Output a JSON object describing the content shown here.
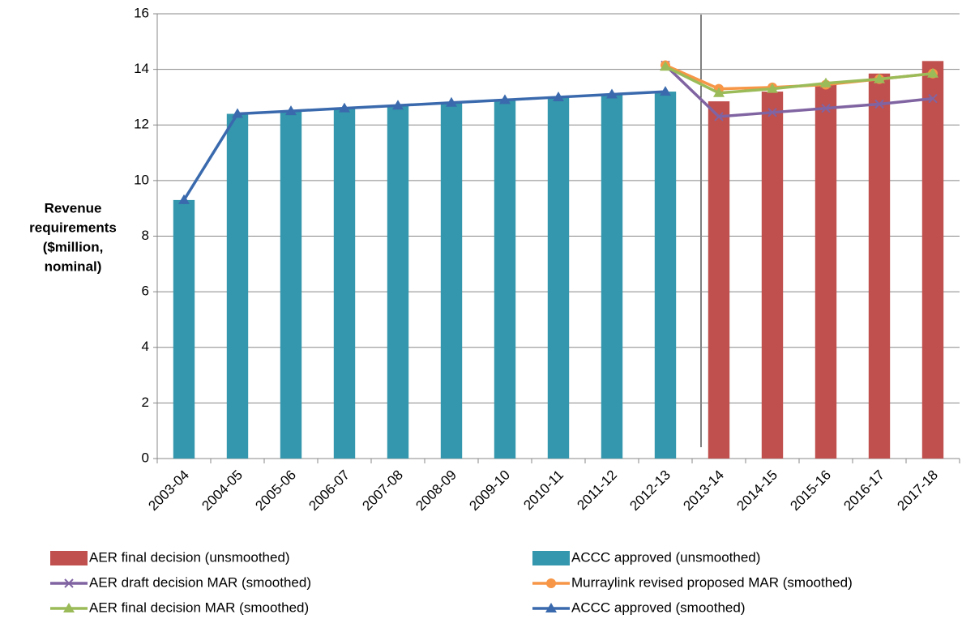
{
  "chart_data": {
    "type": "bar-line",
    "y_label": [
      "Revenue",
      "requirements",
      "($million,",
      "nominal)"
    ],
    "categories": [
      "2003-04",
      "2004-05",
      "2005-06",
      "2006-07",
      "2007-08",
      "2008-09",
      "2009-10",
      "2010-11",
      "2011-12",
      "2012-13",
      "2013-14",
      "2014-15",
      "2015-16",
      "2016-17",
      "2017-18"
    ],
    "series": [
      {
        "name": "AER final decision (unsmoothed)",
        "kind": "bar",
        "color": "#c0504d",
        "values": [
          null,
          null,
          null,
          null,
          null,
          null,
          null,
          null,
          null,
          null,
          12.85,
          13.2,
          13.5,
          13.85,
          14.3
        ]
      },
      {
        "name": "ACCC approved (unsmoothed)",
        "kind": "bar",
        "color": "#3497ad",
        "values": [
          9.3,
          12.4,
          12.5,
          12.6,
          12.7,
          12.8,
          12.9,
          13.0,
          13.1,
          13.2,
          null,
          null,
          null,
          null,
          null
        ]
      },
      {
        "name": "AER draft decision MAR (smoothed)",
        "kind": "line",
        "marker": "x",
        "color": "#8064a2",
        "values": [
          null,
          null,
          null,
          null,
          null,
          null,
          null,
          null,
          null,
          14.15,
          12.3,
          12.45,
          12.6,
          12.75,
          12.95
        ]
      },
      {
        "name": "Murraylink revised proposed MAR (smoothed)",
        "kind": "line",
        "marker": "circle",
        "color": "#f79646",
        "values": [
          null,
          null,
          null,
          null,
          null,
          null,
          null,
          null,
          null,
          14.15,
          13.3,
          13.35,
          13.45,
          13.65,
          13.85
        ]
      },
      {
        "name": "AER final decision MAR (smoothed)",
        "kind": "line",
        "marker": "triangle",
        "color": "#9bbb59",
        "values": [
          null,
          null,
          null,
          null,
          null,
          null,
          null,
          null,
          null,
          14.1,
          13.15,
          13.3,
          13.5,
          13.65,
          13.85
        ]
      },
      {
        "name": "ACCC approved (smoothed)",
        "kind": "line",
        "marker": "triangle",
        "color": "#3a6aad",
        "values": [
          9.3,
          12.4,
          12.5,
          12.6,
          12.7,
          12.8,
          12.9,
          13.0,
          13.1,
          13.2,
          null,
          null,
          null,
          null,
          null
        ]
      }
    ],
    "ylim": [
      0,
      16
    ],
    "yticks": [
      0,
      2,
      4,
      6,
      8,
      10,
      12,
      14,
      16
    ],
    "grid": true
  }
}
